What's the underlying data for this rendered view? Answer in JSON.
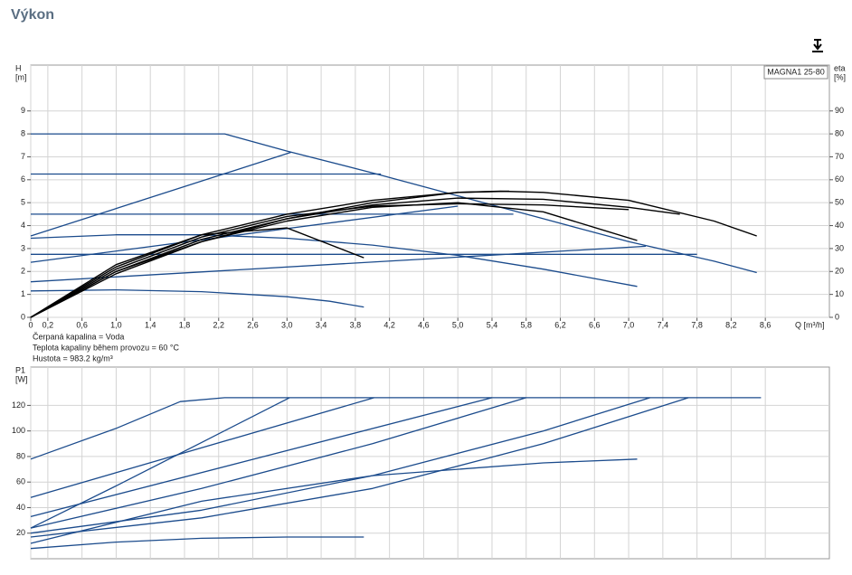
{
  "page": {
    "title": "Výkon"
  },
  "chart_data": [
    {
      "type": "line",
      "annotation": "MAGNA1 25-80",
      "y_label": [
        "H",
        "[m]"
      ],
      "y2_label": [
        "eta",
        "[%]"
      ],
      "x_label": "Q [m³/h]",
      "notes": [
        "Čerpaná kapalina = Voda",
        "Teplota kapaliny během provozu = 60 °C",
        "Hustota = 983.2 kg/m³"
      ],
      "xlim": [
        0,
        9.35
      ],
      "ylim": [
        0,
        11
      ],
      "y2lim": [
        0,
        110
      ],
      "grid": true,
      "xticks": [
        0,
        {
          "value": 0.2,
          "label": "0,2"
        },
        {
          "value": 0.6,
          "label": "0,6"
        },
        {
          "value": 1.0,
          "label": "1,0"
        },
        {
          "value": 1.4,
          "label": "1,4"
        },
        {
          "value": 1.8,
          "label": "1,8"
        },
        {
          "value": 2.2,
          "label": "2,2"
        },
        {
          "value": 2.6,
          "label": "2,6"
        },
        {
          "value": 3.0,
          "label": "3,0"
        },
        {
          "value": 3.4,
          "label": "3,4"
        },
        {
          "value": 3.8,
          "label": "3,8"
        },
        {
          "value": 4.2,
          "label": "4,2"
        },
        {
          "value": 4.6,
          "label": "4,6"
        },
        {
          "value": 5.0,
          "label": "5,0"
        },
        {
          "value": 5.4,
          "label": "5,4"
        },
        {
          "value": 5.8,
          "label": "5,8"
        },
        {
          "value": 6.2,
          "label": "6,2"
        },
        {
          "value": 6.6,
          "label": "6,6"
        },
        {
          "value": 7.0,
          "label": "7,0"
        },
        {
          "value": 7.4,
          "label": "7,4"
        },
        {
          "value": 7.8,
          "label": "7,8"
        },
        {
          "value": 8.2,
          "label": "8,2"
        },
        {
          "value": 8.6,
          "label": "8,6"
        }
      ],
      "yticks": [
        0,
        1,
        2,
        3,
        4,
        5,
        6,
        7,
        8,
        9
      ],
      "y2ticks": [
        0,
        10,
        20,
        30,
        40,
        50,
        60,
        70,
        80,
        90
      ],
      "series": [
        {
          "color": "#1b4b8c",
          "x": [
            0,
            2.27,
            3.0,
            4.0,
            5.0,
            6.0,
            7.0,
            8.0,
            8.5
          ],
          "values": [
            8,
            8,
            7.25,
            6.3,
            5.3,
            4.3,
            3.3,
            2.45,
            1.95
          ]
        },
        {
          "color": "#1b4b8c",
          "x": [
            0,
            4.1
          ],
          "values": [
            6.25,
            6.25
          ]
        },
        {
          "color": "#1b4b8c",
          "x": [
            0,
            5.65
          ],
          "values": [
            4.5,
            4.5
          ]
        },
        {
          "color": "#1b4b8c",
          "x": [
            0,
            7.8
          ],
          "values": [
            2.75,
            2.75
          ]
        },
        {
          "color": "#1b4b8c",
          "x": [
            0,
            3.05
          ],
          "values": [
            3.55,
            7.2
          ]
        },
        {
          "color": "#1b4b8c",
          "x": [
            0,
            5.0
          ],
          "values": [
            2.4,
            4.85
          ]
        },
        {
          "color": "#1b4b8c",
          "x": [
            0,
            7.2
          ],
          "values": [
            1.55,
            3.1
          ]
        },
        {
          "color": "#1b4b8c",
          "x": [
            0,
            1,
            2,
            3,
            4,
            5,
            6,
            7.1
          ],
          "values": [
            3.45,
            3.6,
            3.6,
            3.45,
            3.15,
            2.7,
            2.1,
            1.35
          ]
        },
        {
          "color": "#1b4b8c",
          "x": [
            0,
            1,
            2,
            3,
            3.5,
            3.9
          ],
          "values": [
            1.15,
            1.2,
            1.12,
            0.9,
            0.7,
            0.45
          ]
        },
        {
          "color": "#000000",
          "axis": "y2",
          "x": [
            0,
            1,
            2,
            3,
            4,
            5,
            5.5,
            6,
            7,
            8,
            8.5
          ],
          "values": [
            0,
            22,
            36,
            45,
            51,
            54.5,
            55,
            54.5,
            51,
            42,
            35.5
          ]
        },
        {
          "color": "#000000",
          "axis": "y2",
          "x": [
            0,
            1,
            2,
            3,
            4,
            5,
            6,
            7,
            7.6
          ],
          "values": [
            0,
            20,
            34,
            43,
            49,
            52,
            51.5,
            48,
            45
          ]
        },
        {
          "color": "#000000",
          "axis": "y2",
          "x": [
            0,
            1,
            2,
            3,
            4,
            5,
            6,
            7.1
          ],
          "values": [
            0,
            20,
            33,
            42,
            48,
            50,
            46,
            33.5
          ]
        },
        {
          "color": "#000000",
          "axis": "y2",
          "x": [
            0,
            1,
            2,
            3,
            4,
            5,
            6,
            7
          ],
          "values": [
            0,
            21,
            35,
            44,
            48.5,
            49.5,
            49,
            47
          ]
        },
        {
          "color": "#000000",
          "axis": "y2",
          "x": [
            0,
            1,
            2,
            3,
            3.9
          ],
          "values": [
            0,
            23,
            36,
            39,
            26
          ]
        },
        {
          "color": "#000000",
          "axis": "y2",
          "x": [
            0,
            1,
            2,
            3,
            4,
            5,
            5.6
          ],
          "values": [
            0,
            19,
            33,
            43,
            50,
            54.5,
            55
          ]
        }
      ]
    },
    {
      "type": "line",
      "y_label": [
        "P1",
        "[W]"
      ],
      "xlim": [
        0,
        9.35
      ],
      "ylim": [
        0,
        150
      ],
      "grid": true,
      "yticks": [
        20,
        40,
        60,
        80,
        100,
        120
      ],
      "series": [
        {
          "color": "#1b4b8c",
          "x": [
            0,
            1,
            1.75,
            2.27,
            8.55
          ],
          "values": [
            78,
            102,
            123,
            126,
            126
          ]
        },
        {
          "color": "#1b4b8c",
          "x": [
            0,
            4.02
          ],
          "values": [
            48,
            126
          ]
        },
        {
          "color": "#1b4b8c",
          "x": [
            0,
            1,
            2,
            3.03
          ],
          "values": [
            24,
            57,
            91,
            126
          ]
        },
        {
          "color": "#1b4b8c",
          "x": [
            0,
            5.4
          ],
          "values": [
            33,
            126
          ]
        },
        {
          "color": "#1b4b8c",
          "x": [
            0,
            2,
            4,
            5.8
          ],
          "values": [
            24,
            55,
            90,
            126
          ]
        },
        {
          "color": "#1b4b8c",
          "x": [
            0,
            2,
            4,
            6,
            7.25
          ],
          "values": [
            20,
            38,
            65,
            100,
            126
          ]
        },
        {
          "color": "#1b4b8c",
          "x": [
            0,
            2,
            4,
            6,
            7.7
          ],
          "values": [
            17,
            32,
            55,
            90,
            126
          ]
        },
        {
          "color": "#1b4b8c",
          "x": [
            0,
            2,
            4,
            6,
            7.1
          ],
          "values": [
            12,
            45,
            65,
            75,
            78
          ]
        },
        {
          "color": "#1b4b8c",
          "x": [
            0,
            1,
            2,
            3,
            3.9
          ],
          "values": [
            8,
            13,
            16,
            17,
            17
          ]
        }
      ]
    }
  ]
}
